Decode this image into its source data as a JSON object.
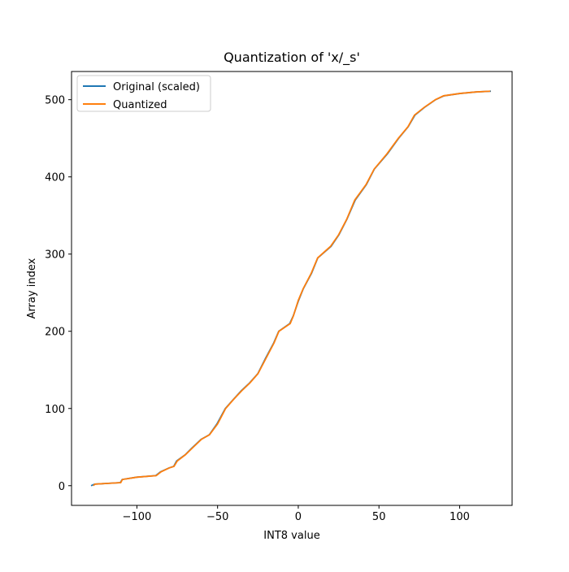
{
  "chart_data": {
    "type": "line",
    "title": "Quantization of 'x/_s'",
    "x_label": "INT8 value",
    "y_label": "Array index",
    "xlim": [
      -140.5,
      132.5
    ],
    "ylim": [
      -25.5,
      536.5
    ],
    "xticks": [
      {
        "value": -100,
        "label": "−100"
      },
      {
        "value": -50,
        "label": "−50"
      },
      0,
      50,
      100
    ],
    "yticks": [
      0,
      100,
      200,
      300,
      400,
      500
    ],
    "legend": "upper left",
    "series": [
      {
        "name": "Original (scaled)",
        "color": "#1f77b4",
        "x": [
          -128.4,
          -126.2,
          -110.3,
          -109.1,
          -100.2,
          -88.4,
          -85.3,
          -80.1,
          -77.2,
          -75.4,
          -70.1,
          -66.3,
          -60.2,
          -55.1,
          -50.4,
          -45.2,
          -40.1,
          -35.3,
          -30.2,
          -25.1,
          -20.3,
          -15.2,
          -12.1,
          -5.3,
          -3.1,
          0.2,
          3.1,
          8.2,
          12.1,
          20.3,
          25.2,
          30.1,
          35.3,
          42.2,
          47.1,
          55.3,
          62.2,
          68.1,
          72.3,
          78.2,
          85.1,
          90.3,
          100.2,
          110.1,
          119.4
        ],
        "values": [
          0,
          2,
          4,
          8,
          11,
          13,
          18,
          23,
          25,
          32,
          40,
          48,
          60,
          66,
          80,
          100,
          112,
          123,
          133,
          145,
          165,
          185,
          200,
          210,
          220,
          240,
          255,
          275,
          295,
          310,
          325,
          345,
          370,
          390,
          410,
          430,
          450,
          465,
          480,
          490,
          500,
          505,
          508,
          510,
          511
        ]
      },
      {
        "name": "Quantized",
        "color": "#ff7f0e",
        "x": [
          -127,
          -126,
          -110,
          -109,
          -100,
          -88,
          -85,
          -80,
          -77,
          -75,
          -70,
          -66,
          -60,
          -55,
          -50,
          -45,
          -40,
          -35,
          -30,
          -25,
          -20,
          -15,
          -12,
          -5,
          -3,
          0,
          3,
          8,
          12,
          20,
          25,
          30,
          35,
          42,
          47,
          55,
          62,
          68,
          72,
          78,
          85,
          90,
          100,
          110,
          119
        ],
        "values": [
          0,
          2,
          4,
          8,
          11,
          13,
          18,
          23,
          25,
          32,
          40,
          48,
          60,
          66,
          80,
          100,
          112,
          123,
          133,
          145,
          165,
          185,
          200,
          210,
          220,
          240,
          255,
          275,
          295,
          310,
          325,
          345,
          370,
          390,
          410,
          430,
          450,
          465,
          480,
          490,
          500,
          505,
          508,
          510,
          511
        ]
      }
    ]
  }
}
